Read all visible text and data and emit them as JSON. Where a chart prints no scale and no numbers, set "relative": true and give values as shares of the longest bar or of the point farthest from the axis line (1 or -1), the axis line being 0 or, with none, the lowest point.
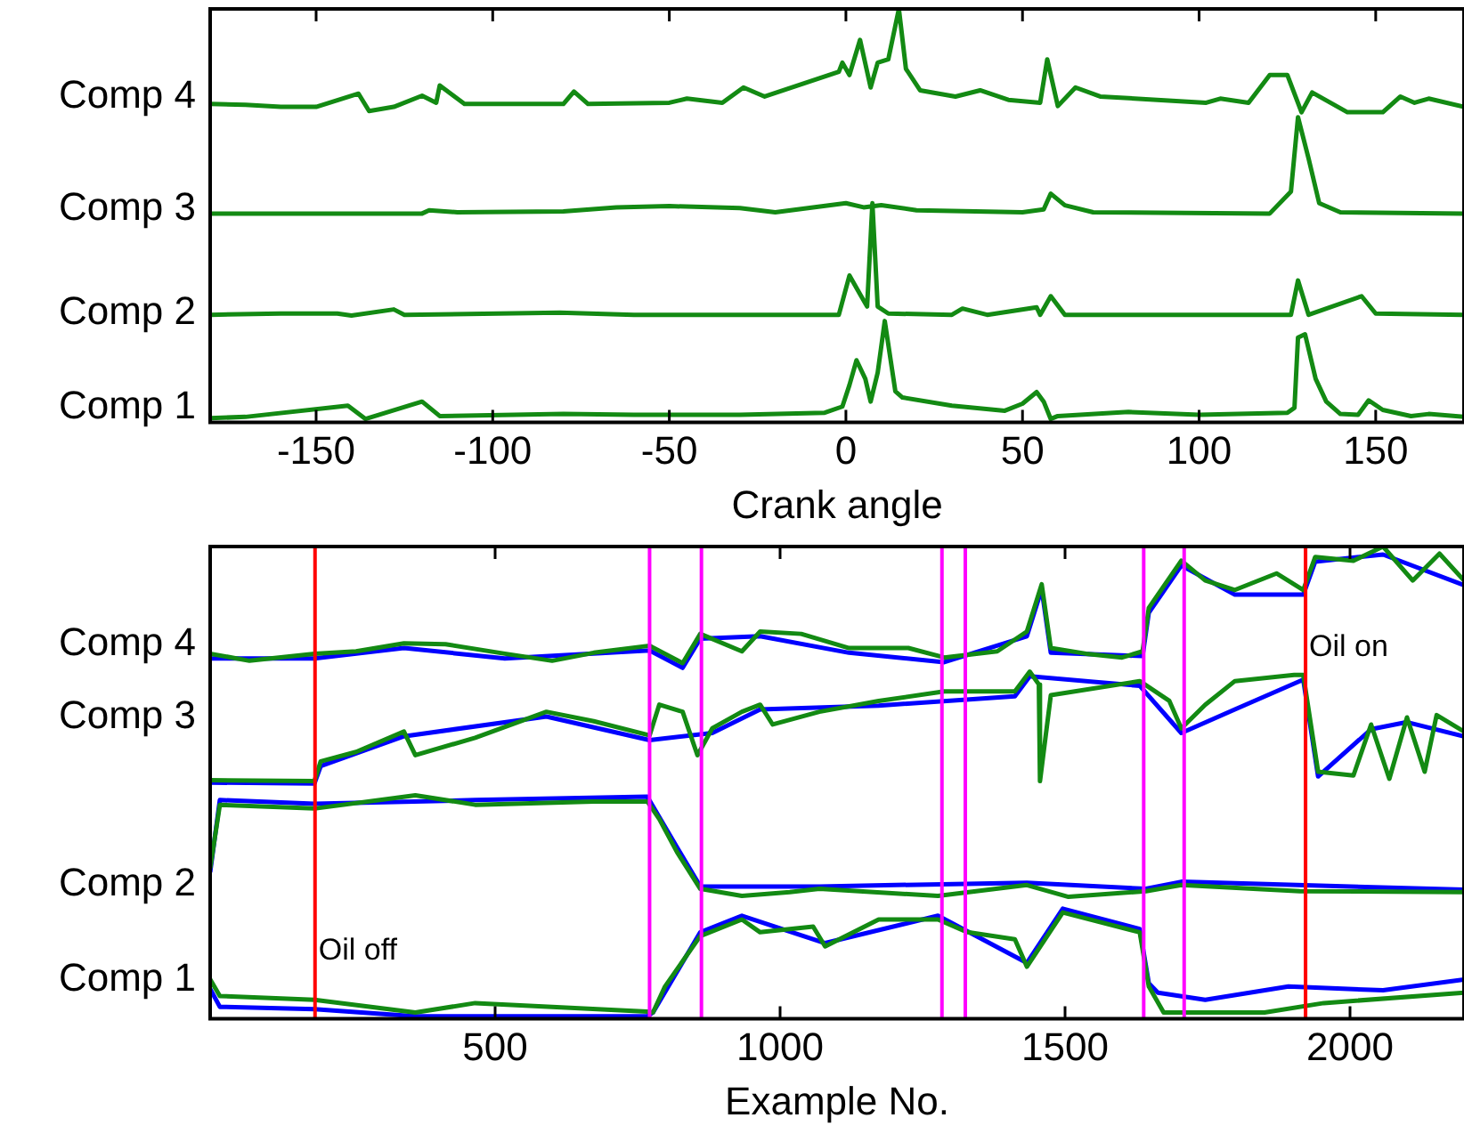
{
  "chart_data": [
    {
      "type": "line",
      "xlabel": "Crank angle",
      "xlim": [
        -180,
        175
      ],
      "xticks": [
        -150,
        -100,
        -50,
        0,
        50,
        100,
        150
      ],
      "relative": true,
      "grid": false,
      "legend": false,
      "marker": "none",
      "line_style": "solid",
      "series": [
        {
          "name": "Comp 4",
          "color": "#138a13",
          "x": [
            -180,
            -170,
            -160,
            -150,
            -138,
            -135,
            -128,
            -120,
            -116,
            -115,
            -108,
            -80,
            -77,
            -73,
            -50,
            -45,
            -35,
            -29,
            -23,
            -2,
            -1,
            1,
            4,
            7,
            9,
            12,
            15,
            17,
            21,
            31,
            38,
            46,
            55,
            57,
            60,
            65,
            72,
            102,
            106,
            114,
            120,
            125,
            129,
            132,
            142,
            152,
            157,
            161,
            165,
            175
          ],
          "values": [
            0.77,
            0.768,
            0.763,
            0.763,
            0.795,
            0.753,
            0.763,
            0.79,
            0.773,
            0.815,
            0.77,
            0.77,
            0.8,
            0.77,
            0.773,
            0.783,
            0.773,
            0.81,
            0.788,
            0.848,
            0.87,
            0.84,
            0.925,
            0.81,
            0.87,
            0.878,
            1,
            0.855,
            0.803,
            0.788,
            0.803,
            0.78,
            0.773,
            0.878,
            0.765,
            0.81,
            0.788,
            0.773,
            0.783,
            0.773,
            0.84,
            0.84,
            0.75,
            0.798,
            0.75,
            0.75,
            0.788,
            0.773,
            0.783,
            0.763
          ]
        },
        {
          "name": "Comp 3",
          "color": "#138a13",
          "x": [
            -180,
            -120,
            -118,
            -110,
            -80,
            -65,
            -50,
            -30,
            -20,
            0,
            5,
            10,
            20,
            50,
            56,
            58,
            62,
            70,
            120,
            126,
            128,
            131,
            134,
            140,
            175
          ],
          "values": [
            0.505,
            0.505,
            0.513,
            0.508,
            0.51,
            0.52,
            0.523,
            0.518,
            0.508,
            0.53,
            0.52,
            0.525,
            0.513,
            0.508,
            0.515,
            0.553,
            0.525,
            0.508,
            0.505,
            0.558,
            0.738,
            0.638,
            0.53,
            0.508,
            0.505
          ]
        },
        {
          "name": "Comp 2",
          "color": "#138a13",
          "x": [
            -180,
            -160,
            -144,
            -140,
            -128,
            -125,
            -81,
            -60,
            -30,
            -2,
            1,
            4,
            6,
            7.5,
            9,
            12,
            30,
            33,
            40,
            54,
            55,
            58,
            62,
            126,
            128,
            131,
            146,
            150,
            175
          ],
          "values": [
            0.26,
            0.263,
            0.263,
            0.258,
            0.273,
            0.26,
            0.265,
            0.26,
            0.26,
            0.26,
            0.355,
            0.31,
            0.28,
            0.53,
            0.28,
            0.263,
            0.26,
            0.275,
            0.26,
            0.278,
            0.26,
            0.305,
            0.26,
            0.26,
            0.343,
            0.26,
            0.305,
            0.263,
            0.26
          ]
        },
        {
          "name": "Comp 1",
          "color": "#138a13",
          "x": [
            -180,
            -170,
            -141,
            -136,
            -120,
            -115,
            -80,
            -60,
            -30,
            -6,
            -1,
            1,
            3,
            5.5,
            7,
            9,
            11,
            14,
            16,
            30,
            45,
            50,
            54,
            56,
            58,
            60,
            80,
            100,
            125,
            127,
            128,
            130,
            133,
            136,
            140,
            145,
            148,
            152,
            160,
            165,
            175
          ],
          "values": [
            0.01,
            0.013,
            0.04,
            0.008,
            0.05,
            0.015,
            0.02,
            0.018,
            0.018,
            0.023,
            0.038,
            0.09,
            0.15,
            0.105,
            0.05,
            0.12,
            0.245,
            0.075,
            0.06,
            0.04,
            0.028,
            0.045,
            0.073,
            0.05,
            0.008,
            0.015,
            0.025,
            0.018,
            0.023,
            0.035,
            0.205,
            0.213,
            0.105,
            0.05,
            0.02,
            0.018,
            0.053,
            0.03,
            0.015,
            0.02,
            0.013
          ]
        }
      ]
    },
    {
      "type": "line",
      "xlabel": "Example No.",
      "xlim": [
        0,
        2200
      ],
      "xticks": [
        500,
        1000,
        1500,
        2000
      ],
      "relative": true,
      "grid": false,
      "legend": false,
      "marker": "none",
      "line_style": "solid",
      "ref_lines": [
        {
          "axis": "x",
          "value": 184,
          "color": "#ff0000"
        },
        {
          "axis": "x",
          "value": 771,
          "color": "#ff00ff"
        },
        {
          "axis": "x",
          "value": 862,
          "color": "#ff00ff"
        },
        {
          "axis": "x",
          "value": 1284,
          "color": "#ff00ff"
        },
        {
          "axis": "x",
          "value": 1325,
          "color": "#ff00ff"
        },
        {
          "axis": "x",
          "value": 1638,
          "color": "#ff00ff"
        },
        {
          "axis": "x",
          "value": 1709,
          "color": "#ff00ff"
        },
        {
          "axis": "x",
          "value": 1922,
          "color": "#ff0000"
        }
      ],
      "annotations": [
        {
          "text": "Oil off",
          "x": 184,
          "y": 0.143
        },
        {
          "text": "Oil on",
          "x": 1922,
          "y": 0.785
        }
      ],
      "series": [
        {
          "color": "#0000ff",
          "x": [
            0,
            183,
            340,
            517,
            771,
            829,
            860,
            965,
            1121,
            1288,
            1433,
            1459,
            1475,
            1636,
            1647,
            1704,
            1798,
            1918,
            1939,
            2058,
            2200
          ],
          "values": [
            0.763,
            0.763,
            0.785,
            0.763,
            0.78,
            0.743,
            0.805,
            0.81,
            0.775,
            0.755,
            0.81,
            0.91,
            0.775,
            0.768,
            0.86,
            0.96,
            0.898,
            0.898,
            0.968,
            0.983,
            0.918
          ]
        },
        {
          "color": "#0000ff",
          "x": [
            0,
            183,
            194,
            340,
            590,
            771,
            881,
            965,
            1173,
            1412,
            1438,
            1631,
            1704,
            1798,
            1918,
            1944,
            2037,
            2100,
            2200
          ],
          "values": [
            0.5,
            0.498,
            0.535,
            0.598,
            0.64,
            0.59,
            0.605,
            0.655,
            0.663,
            0.683,
            0.725,
            0.705,
            0.605,
            0.655,
            0.718,
            0.513,
            0.613,
            0.628,
            0.598
          ]
        },
        {
          "color": "#0000ff",
          "x": [
            0,
            17,
            183,
            465,
            767,
            819,
            860,
            1069,
            1433,
            1642,
            1704,
            2200
          ],
          "values": [
            0.31,
            0.463,
            0.455,
            0.463,
            0.47,
            0.363,
            0.28,
            0.28,
            0.288,
            0.275,
            0.29,
            0.273
          ]
        },
        {
          "color": "#0000ff",
          "x": [
            0,
            17,
            183,
            360,
            767,
            777,
            860,
            933,
            1079,
            1277,
            1433,
            1496,
            1631,
            1647,
            1663,
            1746,
            1892,
            2058,
            2200
          ],
          "values": [
            0.063,
            0.025,
            0.02,
            0.005,
            0.005,
            0.013,
            0.183,
            0.218,
            0.16,
            0.218,
            0.118,
            0.233,
            0.19,
            0.075,
            0.055,
            0.04,
            0.068,
            0.06,
            0.083
          ]
        },
        {
          "name": "Comp 4",
          "color": "#138a13",
          "x": [
            0,
            69,
            183,
            256,
            340,
            413,
            517,
            600,
            673,
            771,
            829,
            860,
            933,
            965,
            1037,
            1121,
            1225,
            1288,
            1381,
            1433,
            1459,
            1475,
            1537,
            1600,
            1636,
            1647,
            1704,
            1746,
            1798,
            1871,
            1918,
            1939,
            2006,
            2058,
            2110,
            2157,
            2200
          ],
          "values": [
            0.773,
            0.758,
            0.773,
            0.778,
            0.795,
            0.793,
            0.773,
            0.758,
            0.775,
            0.79,
            0.753,
            0.815,
            0.778,
            0.82,
            0.815,
            0.785,
            0.785,
            0.765,
            0.778,
            0.82,
            0.92,
            0.785,
            0.773,
            0.765,
            0.778,
            0.87,
            0.97,
            0.928,
            0.908,
            0.943,
            0.908,
            0.978,
            0.97,
            1,
            0.928,
            0.985,
            0.928
          ]
        },
        {
          "name": "Comp 3",
          "color": "#138a13",
          "x": [
            0,
            183,
            194,
            256,
            340,
            360,
            465,
            590,
            673,
            771,
            788,
            829,
            855,
            881,
            933,
            965,
            987,
            1069,
            1173,
            1288,
            1412,
            1438,
            1454,
            1456,
            1475,
            1631,
            1683,
            1704,
            1746,
            1798,
            1902,
            1918,
            1944,
            2006,
            2037,
            2069,
            2100,
            2131,
            2152,
            2200
          ],
          "values": [
            0.505,
            0.503,
            0.545,
            0.565,
            0.608,
            0.558,
            0.595,
            0.65,
            0.63,
            0.6,
            0.665,
            0.65,
            0.558,
            0.615,
            0.65,
            0.665,
            0.623,
            0.65,
            0.673,
            0.693,
            0.693,
            0.735,
            0.708,
            0.503,
            0.685,
            0.715,
            0.673,
            0.615,
            0.665,
            0.715,
            0.728,
            0.728,
            0.523,
            0.515,
            0.623,
            0.508,
            0.638,
            0.523,
            0.643,
            0.608
          ]
        },
        {
          "name": "Comp 2",
          "color": "#138a13",
          "x": [
            0,
            17,
            183,
            360,
            465,
            673,
            767,
            788,
            819,
            860,
            933,
            1017,
            1069,
            1277,
            1433,
            1506,
            1642,
            1704,
            1912,
            2200
          ],
          "values": [
            0.318,
            0.453,
            0.445,
            0.473,
            0.453,
            0.46,
            0.46,
            0.423,
            0.353,
            0.275,
            0.26,
            0.268,
            0.275,
            0.26,
            0.283,
            0.258,
            0.27,
            0.283,
            0.27,
            0.268
          ]
        },
        {
          "name": "Comp 1",
          "color": "#138a13",
          "x": [
            0,
            17,
            183,
            360,
            465,
            767,
            777,
            798,
            860,
            933,
            965,
            1058,
            1079,
            1173,
            1277,
            1329,
            1412,
            1433,
            1496,
            1631,
            1647,
            1673,
            1850,
            1954,
            2200
          ],
          "values": [
            0.083,
            0.048,
            0.04,
            0.013,
            0.033,
            0.015,
            0.013,
            0.068,
            0.175,
            0.21,
            0.183,
            0.195,
            0.153,
            0.21,
            0.21,
            0.183,
            0.168,
            0.11,
            0.225,
            0.183,
            0.068,
            0.013,
            0.013,
            0.033,
            0.055
          ]
        }
      ]
    }
  ]
}
